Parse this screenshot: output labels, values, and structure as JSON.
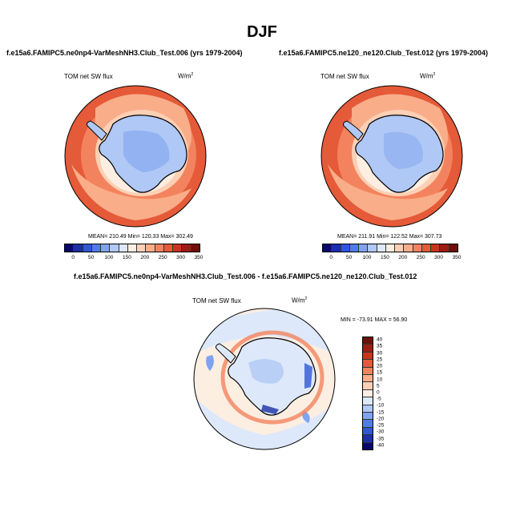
{
  "season_title": "DJF",
  "panels": [
    {
      "case_title": "f.e15a6.FAMIPC5.ne0np4-VarMeshNH3.Club_Test.006 (yrs 1979-2004)",
      "variable": "TOM net SW flux",
      "units_base": "W/m",
      "units_exp": "2",
      "stats": "MEAN= 210.49   Min= 120.33   Max= 302.49"
    },
    {
      "case_title": "f.e15a6.FAMIPC5.ne120_ne120.Club_Test.012 (yrs 1979-2004)",
      "variable": "TOM net SW flux",
      "units_base": "W/m",
      "units_exp": "2",
      "stats": "MEAN= 211.91   Min= 122.52   Max= 307.73"
    }
  ],
  "diff_panel": {
    "title": "f.e15a6.FAMIPC5.ne0np4-VarMeshNH3.Club_Test.006 - f.e15a6.FAMIPC5.ne120_ne120.Club_Test.012",
    "variable": "TOM net SW flux",
    "units_base": "W/m",
    "units_exp": "2",
    "stats": "MIN = -73.91  MAX =  56.90"
  },
  "colorbar_abs": {
    "colors": [
      "#08086b",
      "#1a2fa8",
      "#2f58d6",
      "#4f7de8",
      "#7fa3f0",
      "#b0c8f5",
      "#dde8fa",
      "#fdeee2",
      "#fcd0b5",
      "#f9ad89",
      "#f3835e",
      "#e55a38",
      "#c8351f",
      "#9e1d12",
      "#6e0f08"
    ],
    "labels": [
      "0",
      "50",
      "100",
      "150",
      "200",
      "250",
      "300",
      "350"
    ]
  },
  "colorbar_diff": {
    "colors": [
      "#6e0f08",
      "#9e1d12",
      "#c8351f",
      "#e55a38",
      "#f3835e",
      "#f9ad89",
      "#fcd0b5",
      "#fdeee2",
      "#dde8fa",
      "#b0c8f5",
      "#7fa3f0",
      "#4f7de8",
      "#2f58d6",
      "#1a2fa8",
      "#08086b"
    ],
    "labels": [
      "40",
      "35",
      "30",
      "25",
      "20",
      "15",
      "10",
      "5",
      "0",
      "-5",
      "-10",
      "-15",
      "-20",
      "-25",
      "-30",
      "-35",
      "-40"
    ]
  }
}
